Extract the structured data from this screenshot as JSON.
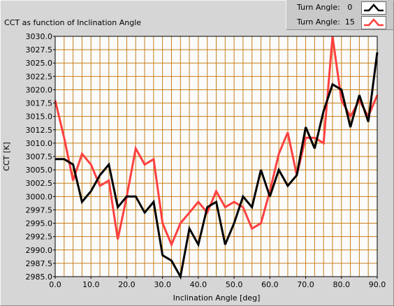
{
  "chart_data": {
    "type": "line",
    "title": "CCT as function of Inclination Angle",
    "xlabel": "Inclination Angle [deg]",
    "ylabel": "CCT [K]",
    "xlim": [
      0,
      90
    ],
    "ylim": [
      2985,
      3030
    ],
    "x_ticks": [
      "0.0",
      "10.0",
      "20.0",
      "30.0",
      "40.0",
      "50.0",
      "60.0",
      "70.0",
      "80.0",
      "90.0"
    ],
    "y_ticks": [
      "2985.0",
      "2987.5",
      "2990.0",
      "2992.5",
      "2995.0",
      "2997.5",
      "3000.0",
      "3002.5",
      "3005.0",
      "3007.5",
      "3010.0",
      "3012.5",
      "3015.0",
      "3017.5",
      "3020.0",
      "3022.5",
      "3025.0",
      "3027.5",
      "3030.0"
    ],
    "grid": true,
    "legend_position": "top-right",
    "legend_title": "Turn Angle:",
    "x": [
      0,
      2.5,
      5,
      7.5,
      10,
      12.5,
      15,
      17.5,
      20,
      22.5,
      25,
      27.5,
      30,
      32.5,
      35,
      37.5,
      40,
      42.5,
      45,
      47.5,
      50,
      52.5,
      55,
      57.5,
      60,
      62.5,
      65,
      67.5,
      70,
      72.5,
      75,
      77.5,
      80,
      82.5,
      85,
      87.5,
      90
    ],
    "series": [
      {
        "name": "0",
        "color": "#000000",
        "values": [
          3007,
          3007,
          3006,
          2999,
          3001,
          3004,
          3006,
          2998,
          3000,
          3000,
          2997,
          2999,
          2989,
          2988,
          2985,
          2994,
          2991,
          2998,
          2999,
          2991,
          2995,
          3000,
          2998,
          3005,
          3000,
          3005,
          3002,
          3004,
          3013,
          3009,
          3016,
          3021,
          3020,
          3013,
          3019,
          3014,
          3027
        ]
      },
      {
        "name": "15",
        "color": "#ff4040",
        "values": [
          3018,
          3011,
          3003,
          3008,
          3006,
          3002,
          3003,
          2992,
          3000,
          3009,
          3006,
          3007,
          2995,
          2991,
          2995,
          2997,
          2999,
          2997,
          3001,
          2998,
          2999,
          2998,
          2994,
          2995,
          3001,
          3008,
          3012,
          3004,
          3011,
          3011,
          3010,
          3030,
          3018,
          3015,
          3018,
          3015,
          3019
        ]
      }
    ]
  },
  "colors": {
    "plot_background": "#fbfbfb",
    "grid": "#c77f1b",
    "panel": "#d6d6d6"
  }
}
